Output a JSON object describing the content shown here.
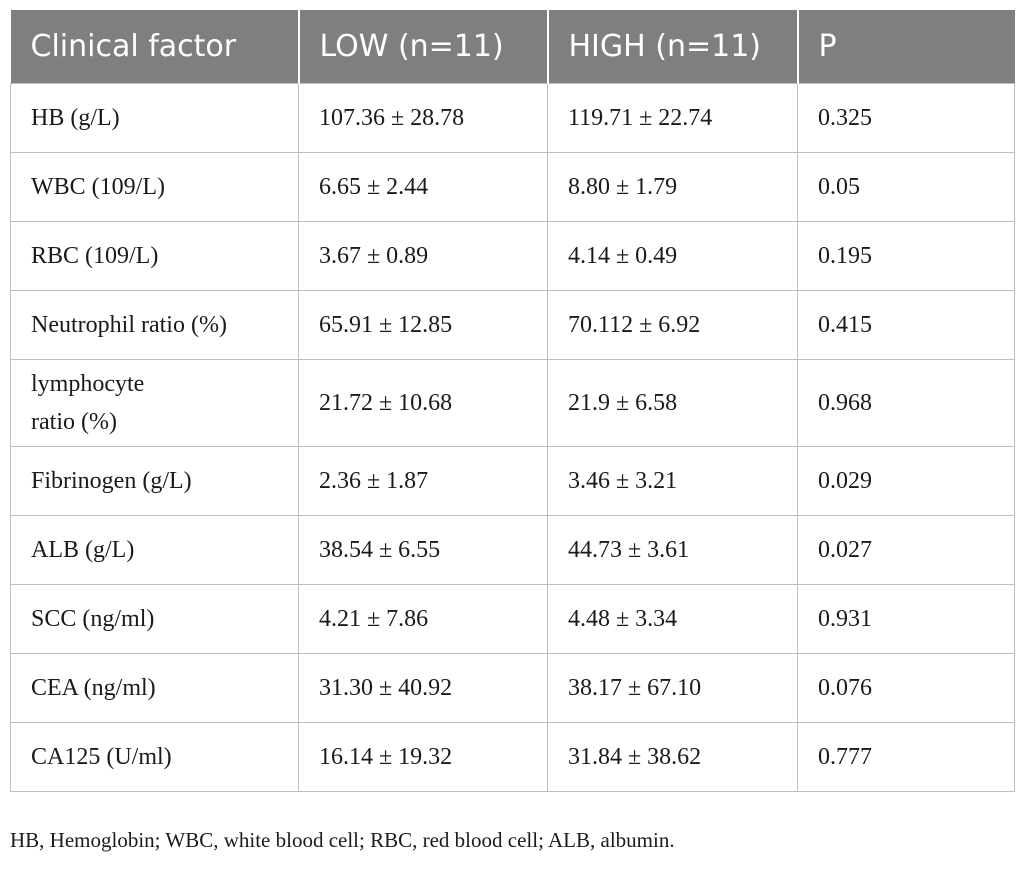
{
  "table": {
    "headers": [
      "Clinical factor",
      "LOW (n=11)",
      "HIGH (n=11)",
      "P"
    ],
    "rows": [
      [
        "HB (g/L)",
        "107.36 ± 28.78",
        "119.71 ± 22.74",
        "0.325"
      ],
      [
        "WBC (109/L)",
        "6.65 ± 2.44",
        "8.80 ± 1.79",
        "0.05"
      ],
      [
        "RBC (109/L)",
        "3.67 ± 0.89",
        "4.14 ± 0.49",
        "0.195"
      ],
      [
        "Neutrophil ratio (%)",
        "65.91 ± 12.85",
        "70.112 ± 6.92",
        "0.415"
      ],
      [
        "lymphocyte ratio (%)",
        "21.72 ± 10.68",
        "21.9 ± 6.58",
        "0.968"
      ],
      [
        "Fibrinogen (g/L)",
        "2.36 ± 1.87",
        "3.46 ± 3.21",
        "0.029"
      ],
      [
        "ALB (g/L)",
        "38.54 ± 6.55",
        "44.73 ± 3.61",
        "0.027"
      ],
      [
        "SCC (ng/ml)",
        "4.21 ± 7.86",
        "4.48 ± 3.34",
        "0.931"
      ],
      [
        "CEA (ng/ml)",
        "31.30 ± 40.92",
        "38.17 ± 67.10",
        "0.076"
      ],
      [
        "CA125 (U/ml)",
        "16.14 ± 19.32",
        "31.84 ± 38.62",
        "0.777"
      ]
    ]
  },
  "footnote": "HB, Hemoglobin; WBC, white blood cell; RBC, red blood cell; ALB, albumin.",
  "colors": {
    "header_bg": "#7f7f7f",
    "header_text": "#ffffff",
    "border": "#bdbdbd"
  }
}
